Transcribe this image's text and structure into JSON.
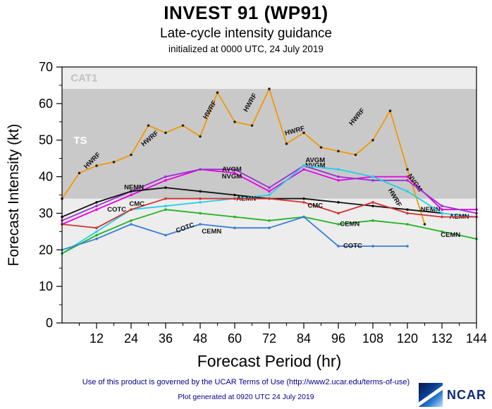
{
  "header": {
    "title": "INVEST 91 (WP91)",
    "subtitle": "Late-cycle intensity guidance",
    "initialized": "initialized at 0000 UTC, 24 July 2019"
  },
  "footer": {
    "terms": "Use of this product is governed by the UCAR Terms of Use (http://www2.ucar.edu/terms-of-use)",
    "generated": "Plot generated at 0920 UTC  24 July 2019",
    "logo_text": "NCAR",
    "text_color": "#00008b"
  },
  "chart_data": {
    "type": "line",
    "title": "INVEST 91 (WP91)",
    "subtitle": "Late-cycle intensity guidance",
    "init_label": "initialized at 0000 UTC, 24 July 2019",
    "xlabel": "Forecast Period (hr)",
    "ylabel": "Forecast Intensity (kt)",
    "xlim": [
      0,
      144
    ],
    "ylim": [
      0,
      70
    ],
    "xticks": [
      12,
      24,
      36,
      48,
      60,
      72,
      84,
      96,
      108,
      120,
      132,
      144
    ],
    "yticks": [
      0,
      10,
      20,
      30,
      40,
      50,
      60,
      70
    ],
    "x_minor_step": 6,
    "y_minor_step": 5,
    "grid": false,
    "legend": "inline-labels",
    "plot_bg": "#ededed",
    "bands": [
      {
        "label": "TS",
        "from": 34,
        "to": 64,
        "color": "#c9c9c9",
        "label_color": "#ffffff",
        "label_at": [
          4,
          49
        ]
      },
      {
        "label": "CAT1",
        "from": 64,
        "to": 70,
        "color": "#ededed",
        "label_color": "#c2c2c2",
        "label_at": [
          3,
          66
        ]
      }
    ],
    "series": [
      {
        "name": "HWRF",
        "color": "#f39800",
        "marker_color": "#222222",
        "x": [
          0,
          6,
          12,
          18,
          24,
          30,
          36,
          42,
          48,
          54,
          60,
          66,
          72,
          78,
          84,
          90,
          96,
          102,
          108,
          114,
          120,
          126
        ],
        "values": [
          34,
          41,
          43,
          44,
          46,
          54,
          52,
          54,
          51,
          63,
          55,
          54,
          64,
          49,
          52,
          48,
          47,
          46,
          50,
          58,
          42,
          27
        ],
        "labels": [
          [
            11,
            44,
            -45
          ],
          [
            31,
            50,
            -40
          ],
          [
            52,
            58,
            -60
          ],
          [
            66,
            60,
            -60
          ],
          [
            81,
            52,
            -15
          ],
          [
            103,
            56,
            -50
          ],
          [
            115,
            34,
            60
          ]
        ]
      },
      {
        "name": "NVGM",
        "color": "#e800e8",
        "x": [
          0,
          12,
          24,
          36,
          48,
          60,
          72,
          84,
          96,
          108,
          120,
          132,
          144
        ],
        "values": [
          27,
          31,
          35,
          39,
          42,
          41,
          36,
          42,
          39,
          40,
          40,
          31,
          31
        ],
        "labels": [
          [
            59,
            39.5,
            0
          ],
          [
            88,
            42.5,
            0
          ],
          [
            122,
            38,
            55
          ]
        ]
      },
      {
        "name": "AVGM",
        "color": "#9b30d0",
        "x": [
          0,
          12,
          24,
          36,
          48,
          60,
          72,
          84,
          96,
          108,
          120,
          132,
          144
        ],
        "values": [
          28,
          32,
          36,
          40,
          42,
          42,
          37,
          43,
          40,
          39,
          39,
          32,
          30
        ],
        "labels": [
          [
            59,
            41.5,
            0
          ],
          [
            88,
            44,
            0
          ]
        ]
      },
      {
        "name": "NEMN",
        "color": "#101010",
        "x": [
          0,
          12,
          24,
          36,
          48,
          60,
          72,
          84,
          96,
          108,
          120,
          132
        ],
        "values": [
          29,
          33,
          36,
          37,
          36,
          35,
          34,
          34,
          33,
          32,
          31,
          30
        ],
        "labels": [
          [
            25,
            36.5,
            0
          ],
          [
            128,
            30.5,
            0
          ]
        ]
      },
      {
        "name": "AEMN",
        "color": "#22d0e5",
        "x": [
          0,
          12,
          24,
          36,
          48,
          60,
          72,
          84,
          96,
          108,
          120,
          132,
          144
        ],
        "values": [
          19,
          25,
          31,
          32,
          33,
          34,
          35,
          43,
          42,
          40,
          36,
          30,
          29
        ],
        "labels": [
          [
            64,
            33.5,
            0
          ],
          [
            138,
            28.5,
            0
          ]
        ]
      },
      {
        "name": "CEMN",
        "color": "#21b324",
        "x": [
          0,
          12,
          24,
          36,
          48,
          60,
          72,
          84,
          96,
          108,
          120,
          132,
          144
        ],
        "values": [
          19,
          24,
          28,
          31,
          30,
          29,
          28,
          29,
          27,
          28,
          27,
          25,
          23
        ],
        "labels": [
          [
            52,
            24.5,
            0
          ],
          [
            100,
            26.5,
            0
          ],
          [
            135,
            23.5,
            0
          ]
        ]
      },
      {
        "name": "COTC",
        "color": "#3b7dd8",
        "x": [
          0,
          12,
          24,
          36,
          48,
          60,
          72,
          84,
          96,
          108,
          120
        ],
        "values": [
          20,
          23,
          27,
          24,
          27,
          26,
          26,
          29,
          21,
          21,
          21
        ],
        "labels": [
          [
            19,
            30.5,
            0
          ],
          [
            43,
            25.5,
            -20
          ],
          [
            101,
            20.5,
            0
          ]
        ]
      },
      {
        "name": "CMC",
        "color": "#d2312e",
        "x": [
          0,
          12,
          24,
          36,
          48,
          60,
          72,
          84,
          96,
          108,
          120,
          132,
          144
        ],
        "values": [
          27,
          26,
          31,
          34,
          34,
          34,
          34,
          33,
          30,
          33,
          30,
          29,
          29
        ],
        "labels": [
          [
            26,
            32,
            0
          ],
          [
            88,
            31.5,
            0
          ]
        ]
      }
    ]
  }
}
